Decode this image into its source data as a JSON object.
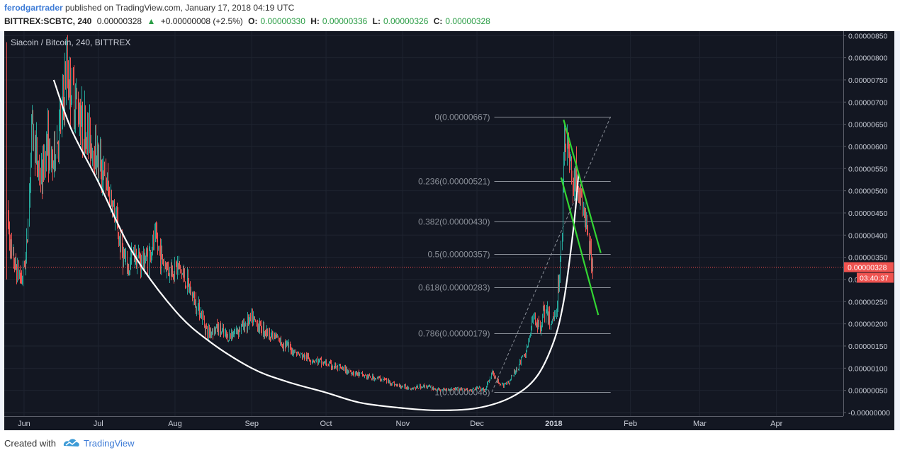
{
  "header": {
    "author": "ferodgartrader",
    "published": "published on TradingView.com, January 17, 2018 04:19 UTC",
    "symbol": "BITTREX:SCBTC, 240",
    "last": "0.00000328",
    "change_arrow": "▲",
    "change": "+0.00000008 (+2.5%)",
    "o_label": "O:",
    "o_value": "0.00000330",
    "h_label": "H:",
    "h_value": "0.00000336",
    "l_label": "L:",
    "l_value": "0.00000326",
    "c_label": "C:",
    "c_value": "0.00000328"
  },
  "footer": {
    "created": "Created with",
    "brand": "TradingView"
  },
  "chart_data": {
    "type": "candlestick",
    "title": "Siacoin / Bitcoin, 240, BITTREX",
    "x_ticks": [
      "Jun",
      "Jul",
      "Aug",
      "Sep",
      "Oct",
      "Nov",
      "Dec",
      "2018",
      "Feb",
      "Mar",
      "Apr"
    ],
    "y_ticks": [
      "0.00000850",
      "0.00000800",
      "0.00000750",
      "0.00000700",
      "0.00000650",
      "0.00000600",
      "0.00000550",
      "0.00000500",
      "0.00000450",
      "0.00000400",
      "0.00000350",
      "0.00000300",
      "0.00000250",
      "0.00000200",
      "0.00000150",
      "0.00000100",
      "0.00000050",
      "-0.00000000"
    ],
    "ylim": [
      -8e-08,
      8.6e-06
    ],
    "current_price": "0.00000328",
    "countdown": "03:40:37",
    "fib_levels": [
      {
        "label": "0(0.00000667)",
        "value": 6.67e-06
      },
      {
        "label": "0.236(0.00000521)",
        "value": 5.21e-06
      },
      {
        "label": "0.382(0.00000430)",
        "value": 4.3e-06
      },
      {
        "label": "0.5(0.00000357)",
        "value": 3.57e-06
      },
      {
        "label": "0.618(0.00000283)",
        "value": 2.83e-06
      },
      {
        "label": "0.786(0.00000179)",
        "value": 1.79e-06
      },
      {
        "label": "1(0.00000046)",
        "value": 4.6e-07
      }
    ],
    "colors": {
      "background": "#131722",
      "up": "#26a69a",
      "down": "#ef5350",
      "curve": "#ffffff",
      "channel": "#33d633",
      "fib": "#8a8f98",
      "price_line": "#ff4d4d"
    },
    "price_path": [
      [
        "2017-05-25",
        4.5e-06
      ],
      [
        "2017-05-27",
        3.5e-06
      ],
      [
        "2017-05-29",
        3.2e-06
      ],
      [
        "2017-05-31",
        3e-06
      ],
      [
        "2017-06-02",
        3.7e-06
      ],
      [
        "2017-06-04",
        6.5e-06
      ],
      [
        "2017-06-06",
        5.7e-06
      ],
      [
        "2017-06-08",
        5.2e-06
      ],
      [
        "2017-06-10",
        6.2e-06
      ],
      [
        "2017-06-12",
        5.5e-06
      ],
      [
        "2017-06-14",
        6.1e-06
      ],
      [
        "2017-06-16",
        6.6e-06
      ],
      [
        "2017-06-18",
        7.7e-06
      ],
      [
        "2017-06-20",
        7.3e-06
      ],
      [
        "2017-06-22",
        7e-06
      ],
      [
        "2017-06-25",
        6.4e-06
      ],
      [
        "2017-06-28",
        6.1e-06
      ],
      [
        "2017-07-01",
        5.7e-06
      ],
      [
        "2017-07-04",
        5.2e-06
      ],
      [
        "2017-07-07",
        4.6e-06
      ],
      [
        "2017-07-09",
        4e-06
      ],
      [
        "2017-07-11",
        3.5e-06
      ],
      [
        "2017-07-13",
        3.2e-06
      ],
      [
        "2017-07-15",
        3.6e-06
      ],
      [
        "2017-07-18",
        3.4e-06
      ],
      [
        "2017-07-21",
        3.5e-06
      ],
      [
        "2017-07-24",
        3.9e-06
      ],
      [
        "2017-07-27",
        3.4e-06
      ],
      [
        "2017-07-30",
        3.2e-06
      ],
      [
        "2017-08-02",
        3.3e-06
      ],
      [
        "2017-08-05",
        3e-06
      ],
      [
        "2017-08-08",
        2.6e-06
      ],
      [
        "2017-08-11",
        2.3e-06
      ],
      [
        "2017-08-14",
        1.8e-06
      ],
      [
        "2017-08-18",
        1.9e-06
      ],
      [
        "2017-08-22",
        1.7e-06
      ],
      [
        "2017-08-27",
        1.9e-06
      ],
      [
        "2017-09-01",
        2.1e-06
      ],
      [
        "2017-09-05",
        1.9e-06
      ],
      [
        "2017-09-10",
        1.7e-06
      ],
      [
        "2017-09-15",
        1.5e-06
      ],
      [
        "2017-09-20",
        1.3e-06
      ],
      [
        "2017-09-25",
        1.2e-06
      ],
      [
        "2017-10-01",
        1.1e-06
      ],
      [
        "2017-10-06",
        1e-06
      ],
      [
        "2017-10-12",
        9e-07
      ],
      [
        "2017-10-18",
        8e-07
      ],
      [
        "2017-10-24",
        7.5e-07
      ],
      [
        "2017-10-30",
        6e-07
      ],
      [
        "2017-11-05",
        5.5e-07
      ],
      [
        "2017-11-10",
        6e-07
      ],
      [
        "2017-11-16",
        5e-07
      ],
      [
        "2017-11-22",
        5.5e-07
      ],
      [
        "2017-11-28",
        5e-07
      ],
      [
        "2017-12-01",
        5.5e-07
      ],
      [
        "2017-12-04",
        5e-07
      ],
      [
        "2017-12-07",
        9e-07
      ],
      [
        "2017-12-10",
        6e-07
      ],
      [
        "2017-12-14",
        7e-07
      ],
      [
        "2017-12-18",
        1.1e-06
      ],
      [
        "2017-12-21",
        1.4e-06
      ],
      [
        "2017-12-24",
        2.2e-06
      ],
      [
        "2017-12-26",
        1.9e-06
      ],
      [
        "2017-12-28",
        2.3e-06
      ],
      [
        "2017-12-31",
        2e-06
      ],
      [
        "2018-01-02",
        2.4e-06
      ],
      [
        "2018-01-04",
        3.6e-06
      ],
      [
        "2018-01-05",
        6.3e-06
      ],
      [
        "2018-01-06",
        6.1e-06
      ],
      [
        "2018-01-08",
        5.4e-06
      ],
      [
        "2018-01-10",
        5.2e-06
      ],
      [
        "2018-01-12",
        4.7e-06
      ],
      [
        "2018-01-14",
        4.3e-06
      ],
      [
        "2018-01-16",
        3.3e-06
      ],
      [
        "2018-01-17",
        3.28e-06
      ]
    ],
    "curve": [
      [
        "2017-06-13",
        7.5e-06
      ],
      [
        "2017-06-20",
        6.4e-06
      ],
      [
        "2017-07-01",
        5.2e-06
      ],
      [
        "2017-07-15",
        3.6e-06
      ],
      [
        "2017-08-01",
        2.3e-06
      ],
      [
        "2017-08-15",
        1.6e-06
      ],
      [
        "2017-09-01",
        1e-06
      ],
      [
        "2017-09-15",
        7e-07
      ],
      [
        "2017-10-01",
        4.5e-07
      ],
      [
        "2017-10-15",
        2.2e-07
      ],
      [
        "2017-11-01",
        1e-07
      ],
      [
        "2017-11-15",
        5e-08
      ],
      [
        "2017-12-01",
        1e-07
      ],
      [
        "2017-12-15",
        3.5e-07
      ],
      [
        "2017-12-25",
        8e-07
      ],
      [
        "2018-01-01",
        1.6e-06
      ],
      [
        "2018-01-05",
        2.5e-06
      ],
      [
        "2018-01-08",
        3.7e-06
      ],
      [
        "2018-01-10",
        4.7e-06
      ],
      [
        "2018-01-11",
        5.4e-06
      ]
    ],
    "channel_upper": [
      [
        "2018-01-05",
        6.6e-06
      ],
      [
        "2018-01-20",
        3.6e-06
      ]
    ],
    "channel_lower": [
      [
        "2018-01-04",
        5.3e-06
      ],
      [
        "2018-01-19",
        2.2e-06
      ]
    ],
    "fib_anchor_line": [
      [
        "2017-12-07",
        4.6e-07
      ],
      [
        "2018-01-24",
        6.67e-06
      ]
    ]
  }
}
